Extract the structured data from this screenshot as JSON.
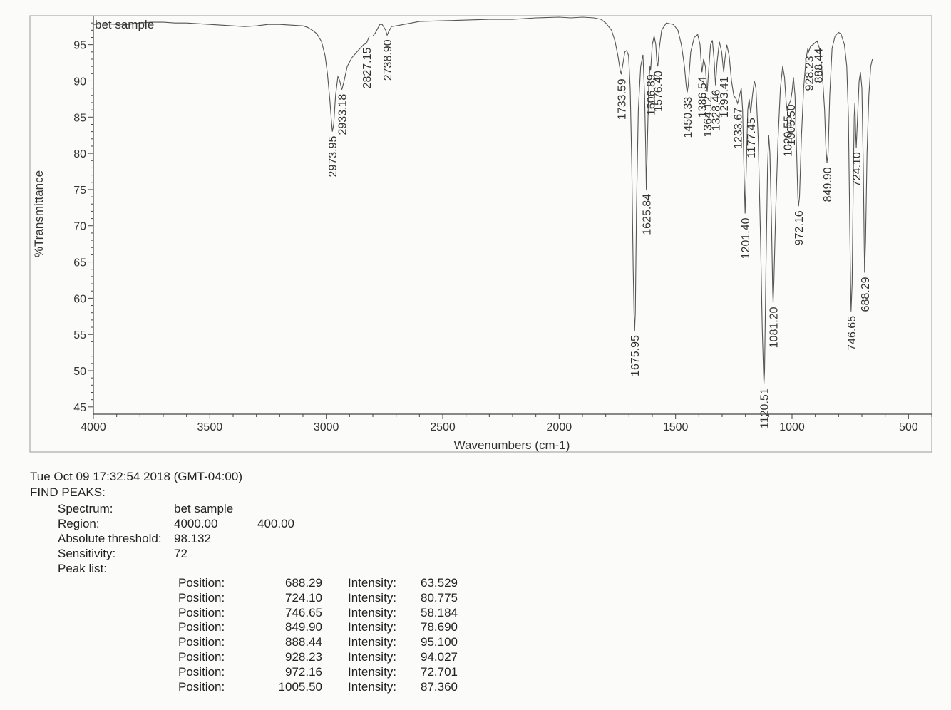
{
  "chart_data": {
    "type": "line",
    "title": "",
    "series_label": "bet sample",
    "xlabel": "Wavenumbers (cm-1)",
    "ylabel": "%Transmittance",
    "xlim": [
      4000,
      400
    ],
    "ylim": [
      44,
      99
    ],
    "x_ticks": [
      4000,
      3500,
      3000,
      2500,
      2000,
      1500,
      1000,
      500
    ],
    "y_ticks": [
      45,
      50,
      55,
      60,
      65,
      70,
      75,
      80,
      85,
      90,
      95
    ],
    "peak_labels": [
      {
        "x": 2973.95,
        "y": 83.0,
        "label": "2973.95"
      },
      {
        "x": 2933.18,
        "y": 88.8,
        "label": "2933.18"
      },
      {
        "x": 2827.15,
        "y": 95.2,
        "label": "2827.15"
      },
      {
        "x": 2738.9,
        "y": 96.3,
        "label": "2738.90"
      },
      {
        "x": 1733.59,
        "y": 90.9,
        "label": "1733.59"
      },
      {
        "x": 1675.95,
        "y": 55.5,
        "label": "1675.95"
      },
      {
        "x": 1625.84,
        "y": 75.0,
        "label": "1625.84"
      },
      {
        "x": 1606.89,
        "y": 91.5,
        "label": "1606.89"
      },
      {
        "x": 1576.4,
        "y": 92.0,
        "label": "1576.40"
      },
      {
        "x": 1450.33,
        "y": 88.4,
        "label": "1450.33"
      },
      {
        "x": 1386.54,
        "y": 91.2,
        "label": "1386.54"
      },
      {
        "x": 1364.12,
        "y": 88.5,
        "label": "1364.12"
      },
      {
        "x": 1328.46,
        "y": 89.4,
        "label": "1328.46"
      },
      {
        "x": 1293.41,
        "y": 91.2,
        "label": "1293.41"
      },
      {
        "x": 1233.67,
        "y": 86.9,
        "label": "1233.67"
      },
      {
        "x": 1201.4,
        "y": 71.7,
        "label": "1201.40"
      },
      {
        "x": 1177.45,
        "y": 85.5,
        "label": "1177.45"
      },
      {
        "x": 1120.51,
        "y": 48.2,
        "label": "1120.51"
      },
      {
        "x": 1081.2,
        "y": 59.4,
        "label": "1081.20"
      },
      {
        "x": 1020.55,
        "y": 85.8,
        "label": "1020.55"
      },
      {
        "x": 1005.5,
        "y": 87.36,
        "label": "1005.50"
      },
      {
        "x": 972.16,
        "y": 72.7,
        "label": "972.16"
      },
      {
        "x": 928.23,
        "y": 94.03,
        "label": "928.23"
      },
      {
        "x": 888.44,
        "y": 95.1,
        "label": "888.44"
      },
      {
        "x": 849.9,
        "y": 78.69,
        "label": "849.90"
      },
      {
        "x": 746.65,
        "y": 58.18,
        "label": "746.65"
      },
      {
        "x": 724.1,
        "y": 80.78,
        "label": "724.10"
      },
      {
        "x": 688.29,
        "y": 63.53,
        "label": "688.29"
      }
    ],
    "spectrum": [
      [
        4000,
        97.8
      ],
      [
        3950,
        97.9
      ],
      [
        3900,
        97.8
      ],
      [
        3850,
        97.8
      ],
      [
        3800,
        98.0
      ],
      [
        3750,
        98.1
      ],
      [
        3700,
        98.1
      ],
      [
        3650,
        98.0
      ],
      [
        3600,
        98.0
      ],
      [
        3550,
        97.9
      ],
      [
        3500,
        97.8
      ],
      [
        3450,
        97.7
      ],
      [
        3400,
        97.6
      ],
      [
        3350,
        97.5
      ],
      [
        3300,
        97.6
      ],
      [
        3250,
        97.8
      ],
      [
        3200,
        97.8
      ],
      [
        3150,
        97.7
      ],
      [
        3100,
        97.6
      ],
      [
        3080,
        97.4
      ],
      [
        3060,
        97.0
      ],
      [
        3040,
        96.5
      ],
      [
        3020,
        95.4
      ],
      [
        3005,
        93.5
      ],
      [
        2995,
        91.0
      ],
      [
        2985,
        87.5
      ],
      [
        2978,
        84.5
      ],
      [
        2973.95,
        83.0
      ],
      [
        2968,
        84.0
      ],
      [
        2960,
        88.0
      ],
      [
        2950,
        90.6
      ],
      [
        2943,
        90.1
      ],
      [
        2933.18,
        88.8
      ],
      [
        2925,
        89.8
      ],
      [
        2910,
        92.0
      ],
      [
        2890,
        93.2
      ],
      [
        2860,
        94.3
      ],
      [
        2840,
        95.0
      ],
      [
        2827.15,
        95.2
      ],
      [
        2815,
        96.2
      ],
      [
        2800,
        96.2
      ],
      [
        2790,
        96.6
      ],
      [
        2770,
        97.8
      ],
      [
        2760,
        97.8
      ],
      [
        2745,
        97.0
      ],
      [
        2738.9,
        96.3
      ],
      [
        2732,
        96.8
      ],
      [
        2720,
        97.5
      ],
      [
        2700,
        97.6
      ],
      [
        2650,
        97.9
      ],
      [
        2600,
        98.2
      ],
      [
        2500,
        98.3
      ],
      [
        2400,
        98.4
      ],
      [
        2300,
        98.5
      ],
      [
        2200,
        98.5
      ],
      [
        2100,
        98.7
      ],
      [
        2000,
        98.8
      ],
      [
        1950,
        98.7
      ],
      [
        1900,
        98.8
      ],
      [
        1850,
        98.7
      ],
      [
        1820,
        98.5
      ],
      [
        1800,
        98.0
      ],
      [
        1790,
        97.6
      ],
      [
        1775,
        97.0
      ],
      [
        1760,
        95.5
      ],
      [
        1748,
        93.5
      ],
      [
        1738,
        91.5
      ],
      [
        1733.59,
        90.9
      ],
      [
        1728,
        92.0
      ],
      [
        1718,
        94.0
      ],
      [
        1710,
        94.2
      ],
      [
        1702,
        93.5
      ],
      [
        1695,
        89.0
      ],
      [
        1688,
        78.0
      ],
      [
        1682,
        64.0
      ],
      [
        1678,
        57.5
      ],
      [
        1675.95,
        55.5
      ],
      [
        1673,
        58.0
      ],
      [
        1668,
        72.0
      ],
      [
        1660,
        86.0
      ],
      [
        1650,
        92.0
      ],
      [
        1640,
        93.6
      ],
      [
        1633,
        88.0
      ],
      [
        1628,
        80.0
      ],
      [
        1625.84,
        75.0
      ],
      [
        1622,
        80.0
      ],
      [
        1615,
        89.5
      ],
      [
        1610,
        92.0
      ],
      [
        1606.89,
        91.5
      ],
      [
        1600,
        95.0
      ],
      [
        1592,
        96.2
      ],
      [
        1585,
        95.0
      ],
      [
        1580,
        92.5
      ],
      [
        1576.4,
        92.0
      ],
      [
        1570,
        94.5
      ],
      [
        1560,
        97.0
      ],
      [
        1540,
        98.0
      ],
      [
        1510,
        97.8
      ],
      [
        1490,
        97.0
      ],
      [
        1475,
        95.0
      ],
      [
        1462,
        92.0
      ],
      [
        1455,
        89.5
      ],
      [
        1450.33,
        88.4
      ],
      [
        1445,
        89.5
      ],
      [
        1435,
        94.0
      ],
      [
        1420,
        96.0
      ],
      [
        1405,
        96.4
      ],
      [
        1395,
        95.0
      ],
      [
        1389,
        92.0
      ],
      [
        1386.54,
        91.2
      ],
      [
        1380,
        93.0
      ],
      [
        1372,
        92.0
      ],
      [
        1366,
        89.0
      ],
      [
        1364.12,
        88.5
      ],
      [
        1360,
        90.5
      ],
      [
        1350,
        95.0
      ],
      [
        1342,
        95.6
      ],
      [
        1335,
        93.0
      ],
      [
        1328.46,
        89.4
      ],
      [
        1322,
        92.5
      ],
      [
        1312,
        95.4
      ],
      [
        1302,
        94.0
      ],
      [
        1296,
        92.0
      ],
      [
        1293.41,
        91.2
      ],
      [
        1288,
        93.0
      ],
      [
        1280,
        95.0
      ],
      [
        1270,
        93.5
      ],
      [
        1260,
        90.0
      ],
      [
        1250,
        88.0
      ],
      [
        1240,
        87.5
      ],
      [
        1233.67,
        86.9
      ],
      [
        1225,
        88.0
      ],
      [
        1218,
        89.0
      ],
      [
        1212,
        86.0
      ],
      [
        1205,
        76.0
      ],
      [
        1201.4,
        71.7
      ],
      [
        1197,
        77.0
      ],
      [
        1190,
        86.0
      ],
      [
        1184,
        87.5
      ],
      [
        1177.45,
        85.5
      ],
      [
        1170,
        88.0
      ],
      [
        1162,
        90.0
      ],
      [
        1155,
        89.0
      ],
      [
        1145,
        82.0
      ],
      [
        1135,
        68.0
      ],
      [
        1128,
        56.0
      ],
      [
        1122,
        49.5
      ],
      [
        1120.51,
        48.2
      ],
      [
        1118,
        50.0
      ],
      [
        1112,
        64.0
      ],
      [
        1105,
        78.0
      ],
      [
        1100,
        82.5
      ],
      [
        1095,
        80.0
      ],
      [
        1088,
        70.0
      ],
      [
        1083,
        61.0
      ],
      [
        1081.2,
        59.4
      ],
      [
        1078,
        62.0
      ],
      [
        1070,
        72.0
      ],
      [
        1060,
        82.0
      ],
      [
        1050,
        89.0
      ],
      [
        1040,
        92.0
      ],
      [
        1032,
        90.5
      ],
      [
        1025,
        87.0
      ],
      [
        1020.55,
        85.8
      ],
      [
        1016,
        86.5
      ],
      [
        1010,
        87.0
      ],
      [
        1005.5,
        87.36
      ],
      [
        1000,
        88.5
      ],
      [
        994,
        90.5
      ],
      [
        987,
        88.0
      ],
      [
        980,
        80.0
      ],
      [
        975,
        74.0
      ],
      [
        972.16,
        72.7
      ],
      [
        968,
        74.0
      ],
      [
        960,
        82.0
      ],
      [
        950,
        89.0
      ],
      [
        940,
        93.0
      ],
      [
        932,
        94.5
      ],
      [
        928.23,
        94.03
      ],
      [
        920,
        94.8
      ],
      [
        910,
        95.0
      ],
      [
        900,
        95.3
      ],
      [
        892,
        95.5
      ],
      [
        888.44,
        95.1
      ],
      [
        882,
        94.5
      ],
      [
        870,
        91.0
      ],
      [
        860,
        86.0
      ],
      [
        855,
        81.0
      ],
      [
        849.9,
        78.69
      ],
      [
        845,
        80.0
      ],
      [
        838,
        88.0
      ],
      [
        828,
        94.5
      ],
      [
        815,
        96.2
      ],
      [
        800,
        96.7
      ],
      [
        790,
        96.5
      ],
      [
        775,
        95.0
      ],
      [
        765,
        92.0
      ],
      [
        758,
        85.0
      ],
      [
        752,
        70.0
      ],
      [
        748,
        61.0
      ],
      [
        746.65,
        58.18
      ],
      [
        742,
        62.0
      ],
      [
        737,
        76.0
      ],
      [
        733,
        85.0
      ],
      [
        730,
        87.0
      ],
      [
        727,
        83.0
      ],
      [
        724.1,
        80.78
      ],
      [
        720,
        84.0
      ],
      [
        712,
        90.0
      ],
      [
        706,
        91.2
      ],
      [
        700,
        89.0
      ],
      [
        694,
        78.0
      ],
      [
        690,
        67.0
      ],
      [
        688.29,
        63.53
      ],
      [
        684,
        68.0
      ],
      [
        678,
        80.0
      ],
      [
        670,
        88.0
      ],
      [
        662,
        92.0
      ],
      [
        655,
        93.0
      ]
    ]
  },
  "report": {
    "timestamp": "Tue Oct 09 17:32:54 2018 (GMT-04:00)",
    "heading": "FIND PEAKS:",
    "spectrum_label": "Spectrum:",
    "spectrum_value": "bet sample",
    "region_label": "Region:",
    "region_start": "4000.00",
    "region_end": "400.00",
    "threshold_label": "Absolute threshold:",
    "threshold_value": "98.132",
    "sensitivity_label": "Sensitivity:",
    "sensitivity_value": "72",
    "peak_list_label": "Peak list:",
    "position_label": "Position:",
    "intensity_label": "Intensity:",
    "peaks": [
      {
        "position": "688.29",
        "intensity": "63.529"
      },
      {
        "position": "724.10",
        "intensity": "80.775"
      },
      {
        "position": "746.65",
        "intensity": "58.184"
      },
      {
        "position": "849.90",
        "intensity": "78.690"
      },
      {
        "position": "888.44",
        "intensity": "95.100"
      },
      {
        "position": "928.23",
        "intensity": "94.027"
      },
      {
        "position": "972.16",
        "intensity": "72.701"
      },
      {
        "position": "1005.50",
        "intensity": "87.360"
      }
    ]
  }
}
